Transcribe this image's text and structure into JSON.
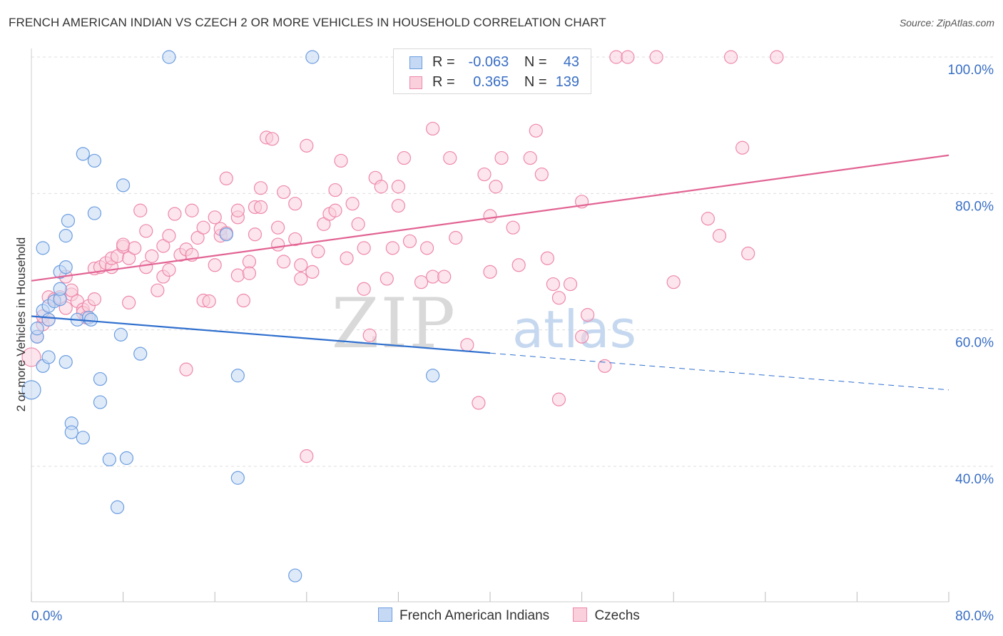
{
  "title": "FRENCH AMERICAN INDIAN VS CZECH 2 OR MORE VEHICLES IN HOUSEHOLD CORRELATION CHART",
  "source": "Source: ZipAtlas.com",
  "watermark": {
    "zip": "ZIP",
    "atlas": "atlas"
  },
  "legend_top": {
    "r_label": "R =",
    "n_label": "N =",
    "rows": [
      {
        "name": "French American Indians",
        "r": "-0.063",
        "n": "43"
      },
      {
        "name": "Czechs",
        "r": "0.365",
        "n": "139"
      }
    ]
  },
  "chart_data": {
    "type": "scatter",
    "title": "FRENCH AMERICAN INDIAN VS CZECH 2 OR MORE VEHICLES IN HOUSEHOLD CORRELATION CHART",
    "xlabel": "",
    "ylabel": "2 or more Vehicles in Household",
    "xlim": [
      0,
      80
    ],
    "ylim": [
      20,
      102
    ],
    "x_tick_labels": [
      "0.0%",
      "80.0%"
    ],
    "y_ticks": [
      40,
      60,
      80,
      100
    ],
    "y_tick_labels": [
      "40.0%",
      "60.0%",
      "80.0%",
      "100.0%"
    ],
    "grid": true,
    "legend_position": "bottom",
    "colors": {
      "blue": "#6b9de0",
      "pink": "#ee88aa",
      "blue_line": "#2f6fce",
      "pink_line": "#e26393",
      "tick_label": "#3a6fc4"
    },
    "series": [
      {
        "name": "French American Indians",
        "color": "#6b9de0",
        "trend": {
          "x0": 0,
          "y0": 62.0,
          "x1": 40,
          "y1": 56.6,
          "dash_to_x": 80,
          "dash_to_y": 51.2
        },
        "points": [
          [
            0,
            51.2
          ],
          [
            0.5,
            59
          ],
          [
            0.5,
            60.2
          ],
          [
            1,
            62.8
          ],
          [
            1,
            72
          ],
          [
            1,
            54.7
          ],
          [
            1.5,
            61.5
          ],
          [
            1.5,
            63.5
          ],
          [
            1.5,
            56
          ],
          [
            2,
            64.2
          ],
          [
            2.5,
            64.5
          ],
          [
            2.5,
            66
          ],
          [
            2.5,
            68.5
          ],
          [
            3,
            69.2
          ],
          [
            3,
            73.8
          ],
          [
            3,
            55.3
          ],
          [
            3.2,
            76
          ],
          [
            3.5,
            46.3
          ],
          [
            3.5,
            45
          ],
          [
            4,
            61.5
          ],
          [
            4.5,
            85.8
          ],
          [
            4.5,
            44.2
          ],
          [
            5,
            61.8
          ],
          [
            5.2,
            61.5
          ],
          [
            5.5,
            77.1
          ],
          [
            5.5,
            84.8
          ],
          [
            6,
            49.4
          ],
          [
            6,
            52.8
          ],
          [
            6.8,
            41
          ],
          [
            7.5,
            34
          ],
          [
            7.8,
            59.3
          ],
          [
            8,
            81.2
          ],
          [
            8.3,
            41.2
          ],
          [
            9.5,
            56.5
          ],
          [
            12,
            100
          ],
          [
            17,
            74
          ],
          [
            18,
            38.3
          ],
          [
            18,
            53.3
          ],
          [
            23,
            24
          ],
          [
            24.5,
            100
          ],
          [
            35,
            53.3
          ]
        ]
      },
      {
        "name": "Czechs",
        "color": "#ee88aa",
        "trend": {
          "x0": 0,
          "y0": 67.2,
          "x1": 80,
          "y1": 85.6
        },
        "points": [
          [
            0,
            56
          ],
          [
            0.5,
            59
          ],
          [
            1,
            60.8
          ],
          [
            1,
            62
          ],
          [
            1.5,
            61.5
          ],
          [
            1.5,
            64.8
          ],
          [
            2,
            64.5
          ],
          [
            2.5,
            64.8
          ],
          [
            3,
            63.2
          ],
          [
            3,
            67.8
          ],
          [
            3.5,
            65.2
          ],
          [
            3.5,
            65.8
          ],
          [
            4,
            64.2
          ],
          [
            4.5,
            63
          ],
          [
            4.5,
            62.5
          ],
          [
            4.8,
            61.8
          ],
          [
            5,
            63.5
          ],
          [
            5.5,
            64.5
          ],
          [
            5.5,
            69
          ],
          [
            6,
            69.2
          ],
          [
            6.5,
            69.8
          ],
          [
            7,
            69.2
          ],
          [
            7,
            70.5
          ],
          [
            7.5,
            70.8
          ],
          [
            8,
            72.2
          ],
          [
            8,
            72.5
          ],
          [
            8.5,
            70.5
          ],
          [
            8.5,
            64
          ],
          [
            9,
            72
          ],
          [
            9.5,
            77.5
          ],
          [
            10,
            74.5
          ],
          [
            10,
            69.2
          ],
          [
            10.5,
            70.8
          ],
          [
            11,
            65.8
          ],
          [
            11.5,
            67.8
          ],
          [
            11.5,
            72.3
          ],
          [
            12,
            73.8
          ],
          [
            12,
            68.8
          ],
          [
            12.5,
            77
          ],
          [
            13,
            71
          ],
          [
            13.5,
            71.8
          ],
          [
            13.5,
            54.2
          ],
          [
            14,
            77.5
          ],
          [
            14,
            71
          ],
          [
            14.5,
            73.5
          ],
          [
            15,
            75
          ],
          [
            15,
            64.3
          ],
          [
            15.5,
            64.2
          ],
          [
            16,
            76.5
          ],
          [
            16,
            69.5
          ],
          [
            16.5,
            73.8
          ],
          [
            16.5,
            74.8
          ],
          [
            17,
            74.2
          ],
          [
            17,
            82.2
          ],
          [
            18,
            76.5
          ],
          [
            18,
            68
          ],
          [
            18,
            77.5
          ],
          [
            18.5,
            64.3
          ],
          [
            19,
            70
          ],
          [
            19,
            68.3
          ],
          [
            19.5,
            74
          ],
          [
            19.5,
            78
          ],
          [
            20,
            80.8
          ],
          [
            20,
            78
          ],
          [
            20.5,
            88.2
          ],
          [
            21,
            88
          ],
          [
            21.5,
            75
          ],
          [
            21.5,
            72.5
          ],
          [
            22,
            80.2
          ],
          [
            22,
            70
          ],
          [
            23,
            73.3
          ],
          [
            23,
            78.5
          ],
          [
            23.5,
            69.5
          ],
          [
            23.5,
            67.5
          ],
          [
            24,
            87
          ],
          [
            24,
            41.5
          ],
          [
            24.5,
            68.5
          ],
          [
            25,
            71.5
          ],
          [
            25.5,
            75.5
          ],
          [
            26,
            77
          ],
          [
            26.5,
            77.5
          ],
          [
            26.5,
            80.5
          ],
          [
            27,
            84.8
          ],
          [
            27.5,
            70.5
          ],
          [
            28,
            78.5
          ],
          [
            28.5,
            75.5
          ],
          [
            29,
            66
          ],
          [
            29,
            72
          ],
          [
            29.5,
            59.2
          ],
          [
            30,
            82.3
          ],
          [
            30.5,
            81
          ],
          [
            31,
            67.5
          ],
          [
            31.5,
            72
          ],
          [
            32,
            81
          ],
          [
            32,
            78.2
          ],
          [
            32.5,
            85.2
          ],
          [
            33,
            73
          ],
          [
            34,
            67
          ],
          [
            34.5,
            72
          ],
          [
            35,
            89.5
          ],
          [
            35,
            67.8
          ],
          [
            36,
            67.8
          ],
          [
            36.5,
            85.2
          ],
          [
            37,
            73.5
          ],
          [
            38,
            57.8
          ],
          [
            39,
            49.3
          ],
          [
            39.5,
            82.8
          ],
          [
            40,
            68.5
          ],
          [
            40,
            76.7
          ],
          [
            40.5,
            81
          ],
          [
            41,
            85.2
          ],
          [
            42,
            75
          ],
          [
            42.5,
            69.5
          ],
          [
            43.5,
            85.2
          ],
          [
            44,
            89.2
          ],
          [
            44.5,
            82.8
          ],
          [
            45,
            70.5
          ],
          [
            45.5,
            66.7
          ],
          [
            46,
            64.7
          ],
          [
            46,
            49.8
          ],
          [
            47,
            66.7
          ],
          [
            48,
            78.8
          ],
          [
            48,
            59
          ],
          [
            48.5,
            62.2
          ],
          [
            50,
            54.7
          ],
          [
            51,
            100
          ],
          [
            52,
            100
          ],
          [
            54.5,
            100
          ],
          [
            56,
            67
          ],
          [
            59,
            76.3
          ],
          [
            60,
            73.8
          ],
          [
            61,
            100
          ],
          [
            62,
            86.7
          ],
          [
            62.5,
            71.2
          ],
          [
            65,
            100
          ]
        ]
      }
    ]
  },
  "bottom_legend": [
    "French American Indians",
    "Czechs"
  ]
}
